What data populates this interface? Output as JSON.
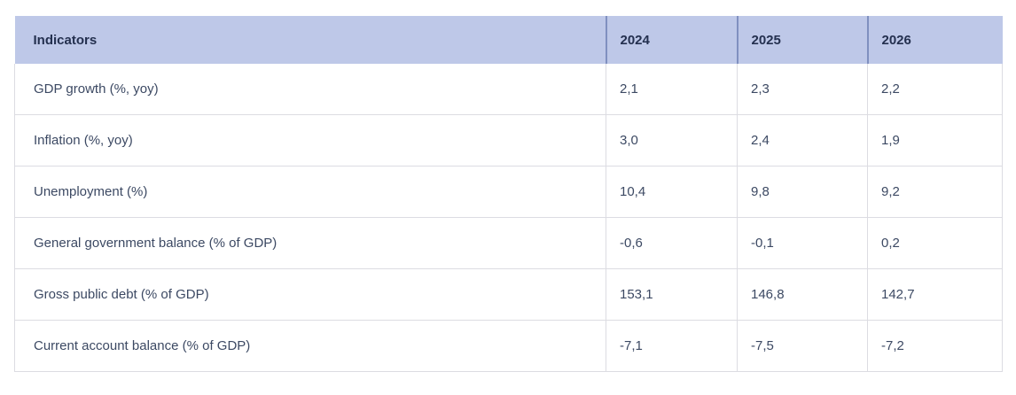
{
  "table": {
    "columns": [
      "Indicators",
      "2024",
      "2025",
      "2026"
    ],
    "rows": [
      {
        "label": "GDP growth (%, yoy)",
        "values": [
          "2,1",
          "2,3",
          "2,2"
        ]
      },
      {
        "label": "Inflation (%, yoy)",
        "values": [
          "3,0",
          "2,4",
          "1,9"
        ]
      },
      {
        "label": "Unemployment (%)",
        "values": [
          "10,4",
          "9,8",
          "9,2"
        ]
      },
      {
        "label": "General government balance (% of GDP)",
        "values": [
          "-0,6",
          "-0,1",
          "0,2"
        ]
      },
      {
        "label": "Gross public debt (% of GDP)",
        "values": [
          "153,1",
          "146,8",
          "142,7"
        ]
      },
      {
        "label": "Current account balance (% of GDP)",
        "values": [
          "-7,1",
          "-7,5",
          "-7,2"
        ]
      }
    ],
    "colors": {
      "header_background": "#bec8e8",
      "header_divider": "#8090c0",
      "header_text": "#24304f",
      "body_text": "#3c4963",
      "body_border": "#dcdce2",
      "page_background": "#ffffff"
    }
  }
}
